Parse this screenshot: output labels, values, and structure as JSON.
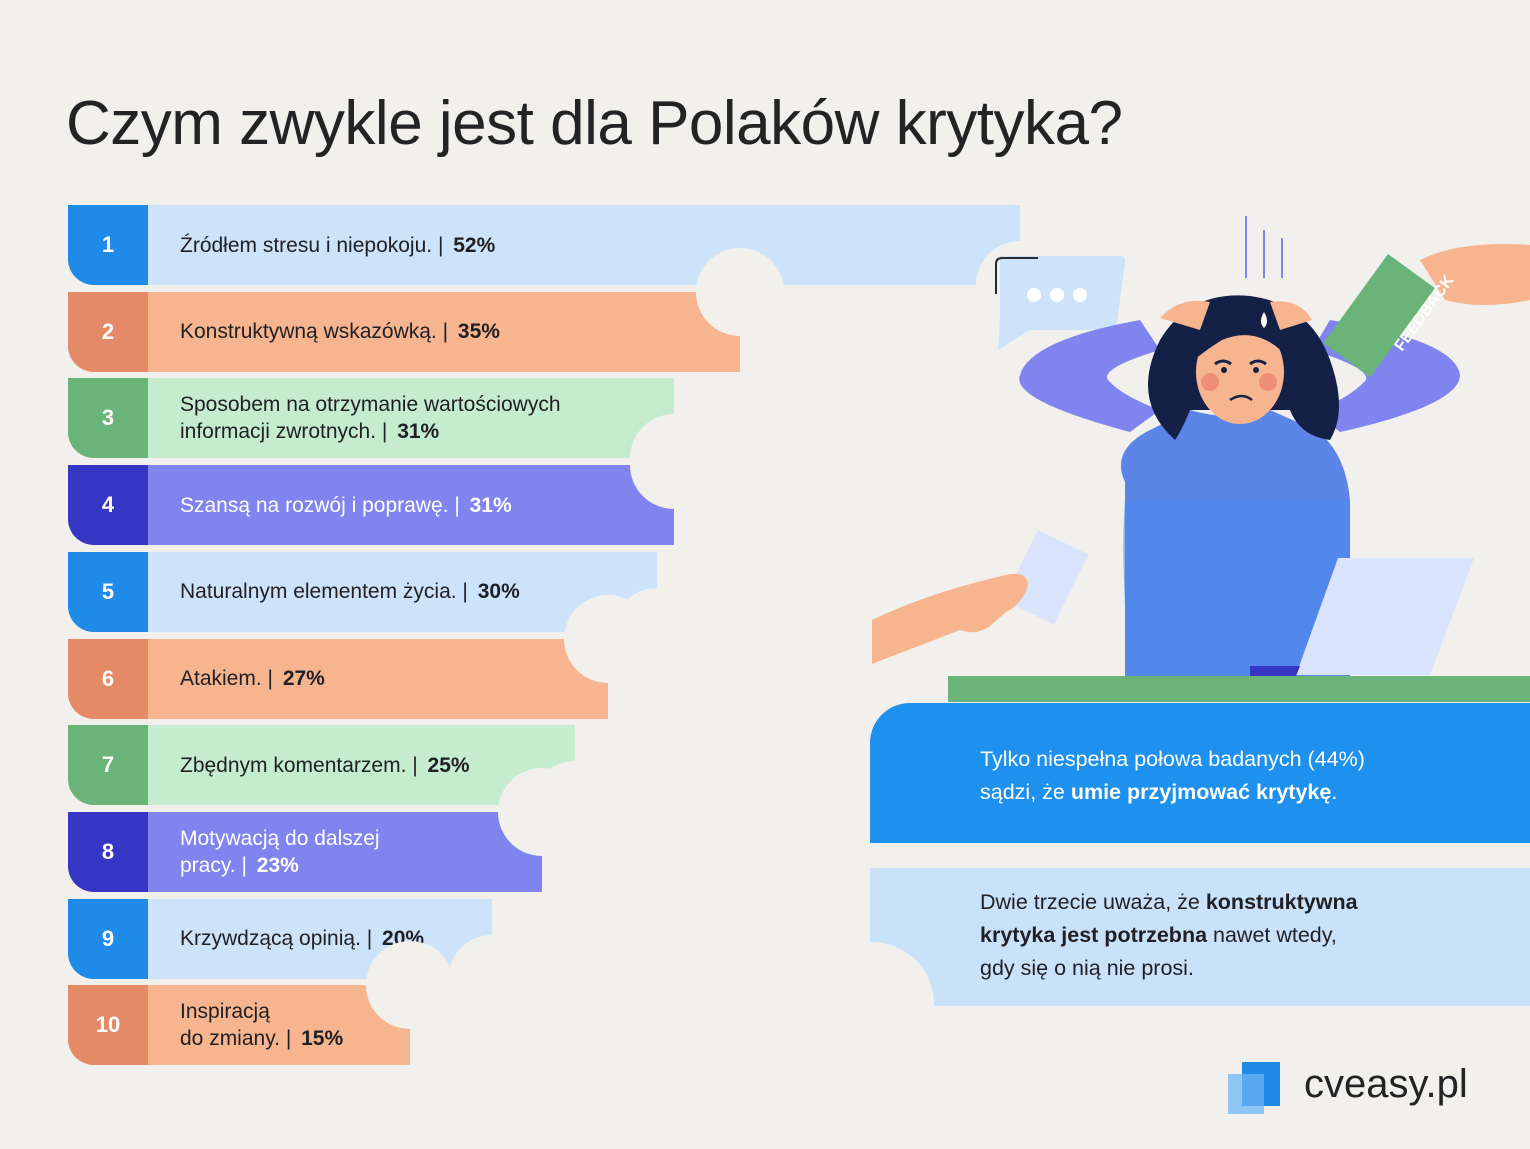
{
  "title": "Czym zwykle jest dla Polaków krytyka?",
  "colors": {
    "blue_dark": "#1e8be8",
    "blue_light": "#cde3f9",
    "orange_dark": "#e58a66",
    "orange_light": "#f6b58f",
    "green_dark": "#6ab47a",
    "green_light": "#c5ecce",
    "purple_dark": "#3536c3",
    "purple_light": "#7f84ef",
    "background": "#f2f0ec"
  },
  "chart_data": {
    "type": "bar",
    "orientation": "horizontal",
    "categories": [
      "Źródłem stresu i niepokoju.",
      "Konstruktywną wskazówką.",
      "Sposobem na otrzymanie wartościowych informacji zwrotnych.",
      "Szansą na rozwój i poprawę.",
      "Naturalnym elementem życia.",
      "Atakiem.",
      "Zbędnym komentarzem.",
      "Motywacją do dalszej pracy.",
      "Krzywdzącą opinią.",
      "Inspiracją do zmiany."
    ],
    "values": [
      52,
      35,
      31,
      31,
      30,
      27,
      25,
      23,
      20,
      15
    ],
    "value_labels": [
      "52%",
      "35%",
      "31%",
      "31%",
      "30%",
      "27%",
      "25%",
      "23%",
      "20%",
      "15%"
    ],
    "ranks": [
      "1",
      "2",
      "3",
      "4",
      "5",
      "6",
      "7",
      "8",
      "9",
      "10"
    ],
    "label_lines": [
      [
        "Źródłem stresu i niepokoju. | "
      ],
      [
        "Konstruktywną wskazówką. | "
      ],
      [
        "Sposobem na otrzymanie wartościowych",
        "informacji zwrotnych. | "
      ],
      [
        "Szansą na rozwój i poprawę. | "
      ],
      [
        "Naturalnym elementem życia. | "
      ],
      [
        "Atakiem. | "
      ],
      [
        "Zbędnym komentarzem. | "
      ],
      [
        "Motywacją do dalszej",
        "pracy. | "
      ],
      [
        "Krzywdzącą opinią. | "
      ],
      [
        "Inspiracją",
        "do zmiany. | "
      ]
    ],
    "unit": "%"
  },
  "illustration": {
    "feedback_card_text": "FEEDBACK"
  },
  "panels": {
    "p1": {
      "pre": "Tylko niespełna połowa badanych (44%)",
      "pre2": "sądzi, że ",
      "bold": "umie przyjmować krytykę",
      "post": "."
    },
    "p2": {
      "pre": "Dwie trzecie uważa, że ",
      "bold1": "konstruktywna",
      "bold2": "krytyka jest potrzebna",
      "post": " nawet wtedy,",
      "post2": "gdy się o nią nie prosi."
    }
  },
  "logo": {
    "text": "cveasy.pl"
  }
}
